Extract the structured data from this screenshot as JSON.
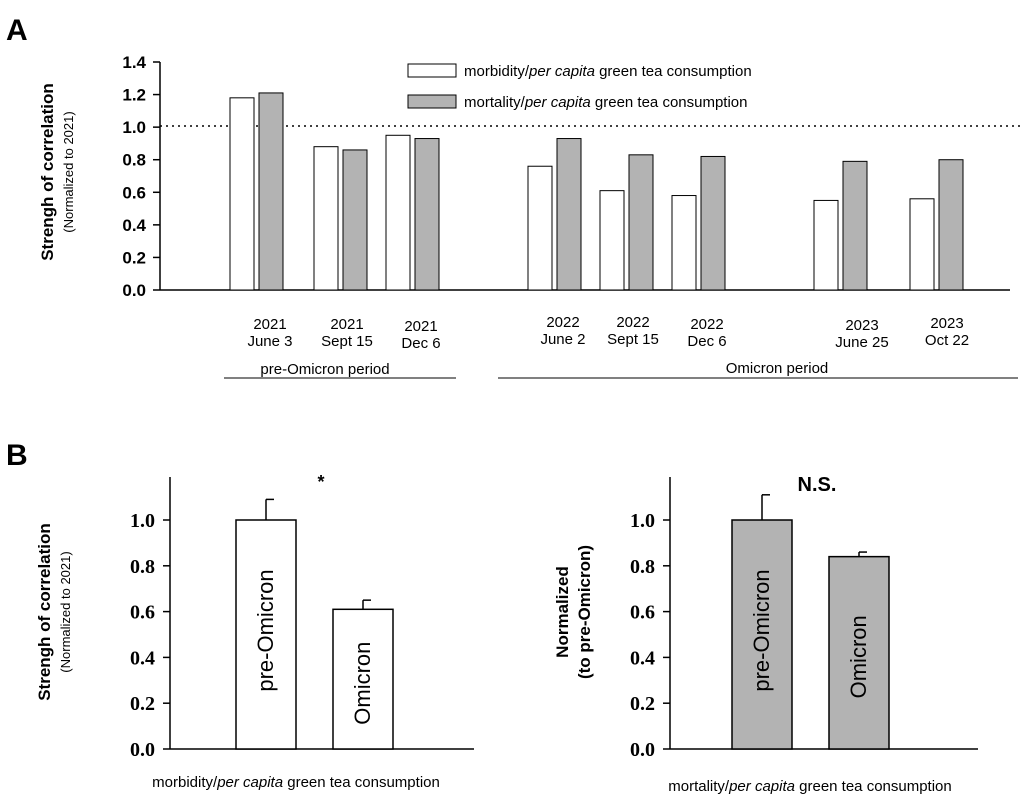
{
  "panel_a": {
    "label": "A",
    "legend": [
      {
        "prefix": "morbidity/",
        "italic": "per capita",
        "suffix": " green tea consumption",
        "color": "#ffffff"
      },
      {
        "prefix": "mortality/",
        "italic": "per capita",
        "suffix": " green tea consumption",
        "color": "#b3b3b3"
      }
    ],
    "ylabel": "Strengh of correlation",
    "ylabel_sub": "(Normalized to 2021)",
    "groups": [
      {
        "line1": "2021",
        "line2": "June 3"
      },
      {
        "line1": "2021",
        "line2": "Sept 15"
      },
      {
        "line1": "2021",
        "line2": "Dec 6"
      },
      {
        "line1": "2022",
        "line2": "June 2"
      },
      {
        "line1": "2022",
        "line2": "Sept 15"
      },
      {
        "line1": "2022",
        "line2": "Dec 6"
      },
      {
        "line1": "2023",
        "line2": "June 25"
      },
      {
        "line1": "2023",
        "line2": "Oct 22"
      }
    ],
    "periods": [
      "pre-Omicron period",
      "Omicron period"
    ],
    "yticks": [
      "0.0",
      "0.2",
      "0.4",
      "0.6",
      "0.8",
      "1.0",
      "1.2",
      "1.4"
    ]
  },
  "panel_b": {
    "label": "B",
    "left": {
      "ylabel": "Strengh of correlation",
      "ylabel_sub": "(Normalized to 2021)",
      "sig": "*",
      "bar_labels": [
        "pre-Omicron",
        "Omicron"
      ],
      "xlabel": {
        "prefix": "morbidity/",
        "italic": "per capita",
        "suffix": " green tea consumption"
      },
      "yticks": [
        "0.0",
        "0.2",
        "0.4",
        "0.6",
        "0.8",
        "1.0"
      ]
    },
    "right": {
      "ylabel": "Normalized",
      "ylabel_sub": "(to pre-Omicron)",
      "sig": "N.S.",
      "bar_labels": [
        "pre-Omicron",
        "Omicron"
      ],
      "xlabel": {
        "prefix": "mortality/",
        "italic": "per capita",
        "suffix": " green tea consumption"
      },
      "yticks": [
        "0.0",
        "0.2",
        "0.4",
        "0.6",
        "0.8",
        "1.0"
      ]
    }
  },
  "chart_data": [
    {
      "type": "bar",
      "categories": [
        "2021 June 3",
        "2021 Sept 15",
        "2021 Dec 6",
        "2022 June 2",
        "2022 Sept 15",
        "2022 Dec 6",
        "2023 June 25",
        "2023 Oct 22"
      ],
      "series": [
        {
          "name": "morbidity/per capita green tea consumption",
          "values": [
            1.18,
            0.88,
            0.95,
            0.76,
            0.61,
            0.58,
            0.55,
            0.56
          ],
          "color": "#ffffff"
        },
        {
          "name": "mortality/per capita green tea consumption",
          "values": [
            1.21,
            0.86,
            0.93,
            0.93,
            0.83,
            0.82,
            0.79,
            0.8
          ],
          "color": "#b3b3b3"
        }
      ],
      "reference_line": 1.0,
      "ylim": [
        0,
        1.4
      ],
      "ylabel": "Strengh of correlation (Normalized to 2021)",
      "grid": false
    },
    {
      "type": "bar",
      "categories": [
        "pre-Omicron",
        "Omicron"
      ],
      "values": [
        1.0,
        0.61
      ],
      "errors": [
        0.09,
        0.04
      ],
      "color": "#ffffff",
      "annotation": "*",
      "ylim": [
        0,
        1.0
      ],
      "ylabel": "Strengh of correlation (Normalized to 2021)",
      "xlabel": "morbidity/per capita green tea consumption"
    },
    {
      "type": "bar",
      "categories": [
        "pre-Omicron",
        "Omicron"
      ],
      "values": [
        1.0,
        0.84
      ],
      "errors": [
        0.11,
        0.02
      ],
      "color": "#b3b3b3",
      "annotation": "N.S.",
      "ylim": [
        0,
        1.0
      ],
      "ylabel": "Normalized (to pre-Omicron)",
      "xlabel": "mortality/per capita green tea consumption"
    }
  ]
}
